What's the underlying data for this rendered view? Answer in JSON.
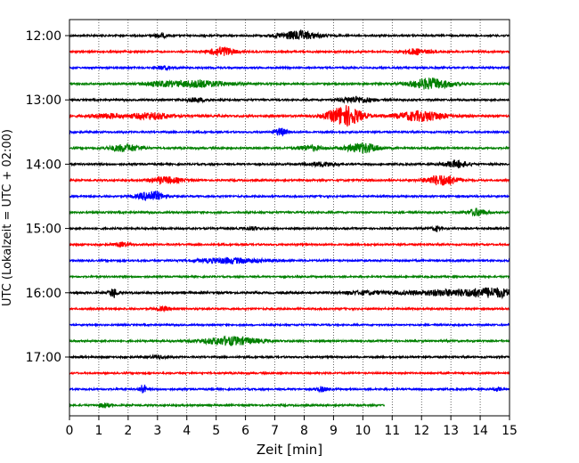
{
  "chart_data": {
    "type": "line",
    "title": "",
    "xlabel": "Zeit  [min]",
    "ylabel": "UTC (Lokalzeit = UTC + 02:00)",
    "xlim": [
      0,
      15
    ],
    "xticks": [
      "0",
      "1",
      "2",
      "3",
      "4",
      "5",
      "6",
      "7",
      "8",
      "9",
      "10",
      "11",
      "12",
      "13",
      "14",
      "15"
    ],
    "yticks": [
      {
        "label": "12:00",
        "hour": 12
      },
      {
        "label": "13:00",
        "hour": 13
      },
      {
        "label": "14:00",
        "hour": 14
      },
      {
        "label": "15:00",
        "hour": 15
      },
      {
        "label": "16:00",
        "hour": 16
      },
      {
        "label": "17:00",
        "hour": 17
      }
    ],
    "grid": "vertical dotted",
    "trace_interval_minutes": 15,
    "first_trace_start": "12:00",
    "trace_colors": [
      "#000000",
      "#ff0000",
      "#0000ff",
      "#008000"
    ],
    "traces": [
      {
        "start": "12:00",
        "end_min": 15,
        "noise": 0.6,
        "events": [
          [
            7.8,
            3.0,
            0.5
          ],
          [
            3.1,
            1.2,
            0.2
          ]
        ]
      },
      {
        "start": "12:15",
        "end_min": 15,
        "noise": 0.6,
        "events": [
          [
            5.2,
            3.2,
            0.3
          ],
          [
            11.8,
            2.0,
            0.3
          ]
        ]
      },
      {
        "start": "12:30",
        "end_min": 15,
        "noise": 0.6,
        "events": [
          [
            3.2,
            1.2,
            0.2
          ]
        ]
      },
      {
        "start": "12:45",
        "end_min": 15,
        "noise": 0.6,
        "events": [
          [
            4.4,
            2.2,
            0.8
          ],
          [
            12.3,
            3.8,
            0.5
          ],
          [
            3.0,
            1.2,
            0.4
          ]
        ]
      },
      {
        "start": "13:00",
        "end_min": 15,
        "noise": 0.6,
        "events": [
          [
            9.8,
            2.0,
            0.4
          ],
          [
            4.3,
            1.2,
            0.3
          ]
        ]
      },
      {
        "start": "13:15",
        "end_min": 15,
        "noise": 0.7,
        "events": [
          [
            9.4,
            7.0,
            0.4
          ],
          [
            12.0,
            3.4,
            0.6
          ],
          [
            2.8,
            2.2,
            0.5
          ],
          [
            1.3,
            1.4,
            0.4
          ]
        ]
      },
      {
        "start": "13:30",
        "end_min": 15,
        "noise": 0.6,
        "events": [
          [
            7.2,
            2.6,
            0.15
          ]
        ]
      },
      {
        "start": "13:45",
        "end_min": 15,
        "noise": 0.6,
        "events": [
          [
            1.9,
            2.4,
            0.4
          ],
          [
            10.0,
            3.4,
            0.4
          ],
          [
            8.2,
            1.8,
            0.3
          ]
        ]
      },
      {
        "start": "14:00",
        "end_min": 15,
        "noise": 0.6,
        "events": [
          [
            13.2,
            2.4,
            0.3
          ],
          [
            8.6,
            1.4,
            0.4
          ]
        ]
      },
      {
        "start": "14:15",
        "end_min": 15,
        "noise": 0.6,
        "events": [
          [
            12.7,
            3.6,
            0.4
          ],
          [
            3.3,
            2.2,
            0.4
          ]
        ]
      },
      {
        "start": "14:30",
        "end_min": 15,
        "noise": 0.6,
        "events": [
          [
            2.8,
            3.6,
            0.3
          ]
        ]
      },
      {
        "start": "14:45",
        "end_min": 15,
        "noise": 0.6,
        "events": [
          [
            13.9,
            2.6,
            0.2
          ]
        ]
      },
      {
        "start": "15:00",
        "end_min": 15,
        "noise": 0.6,
        "events": [
          [
            12.5,
            1.6,
            0.1
          ],
          [
            6.2,
            1.0,
            0.2
          ]
        ]
      },
      {
        "start": "15:15",
        "end_min": 15,
        "noise": 0.6,
        "events": [
          [
            1.8,
            1.4,
            0.2
          ]
        ]
      },
      {
        "start": "15:30",
        "end_min": 15,
        "noise": 0.6,
        "events": [
          [
            5.5,
            1.8,
            0.8
          ]
        ]
      },
      {
        "start": "15:45",
        "end_min": 15,
        "noise": 0.55,
        "events": []
      },
      {
        "start": "16:00",
        "end_min": 15,
        "noise": 0.7,
        "events": [
          [
            1.5,
            3.2,
            0.1
          ],
          [
            13.3,
            2.0,
            1.4
          ],
          [
            14.5,
            1.8,
            0.5
          ],
          [
            10.0,
            1.0,
            0.5
          ]
        ]
      },
      {
        "start": "16:15",
        "end_min": 15,
        "noise": 0.6,
        "events": [
          [
            3.2,
            1.2,
            0.2
          ]
        ]
      },
      {
        "start": "16:30",
        "end_min": 15,
        "noise": 0.55,
        "events": []
      },
      {
        "start": "16:45",
        "end_min": 15,
        "noise": 0.6,
        "events": [
          [
            5.5,
            2.8,
            0.7
          ]
        ]
      },
      {
        "start": "17:00",
        "end_min": 15,
        "noise": 0.6,
        "events": [
          [
            3.0,
            1.0,
            0.2
          ]
        ]
      },
      {
        "start": "17:15",
        "end_min": 15,
        "noise": 0.55,
        "events": []
      },
      {
        "start": "17:30",
        "end_min": 15,
        "noise": 0.6,
        "events": [
          [
            2.5,
            3.4,
            0.08
          ],
          [
            8.6,
            1.6,
            0.15
          ],
          [
            14.6,
            1.2,
            0.1
          ]
        ]
      },
      {
        "start": "17:45",
        "end_min": 10.75,
        "noise": 0.6,
        "events": [
          [
            1.2,
            1.4,
            0.15
          ]
        ]
      }
    ]
  }
}
